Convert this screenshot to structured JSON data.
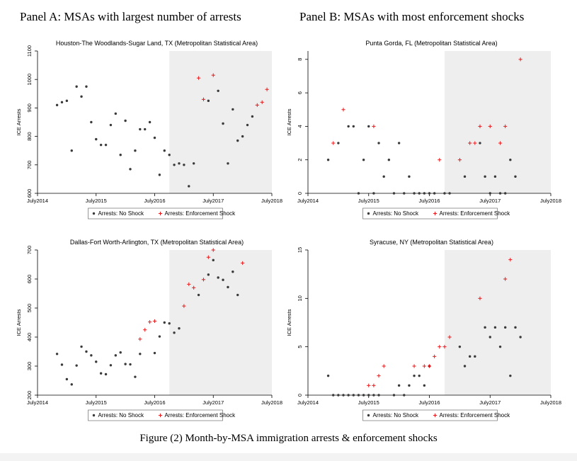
{
  "panel_a_title": "Panel A: MSAs with largest number of arrests",
  "panel_b_title": "Panel B: MSAs with most enforcement shocks",
  "figure_caption": "Figure (2)    Month-by-MSA immigration arrests & enforcement shocks",
  "colors": {
    "no_shock": "#3a3a3a",
    "shock": "#e8191b",
    "shaded": "#eeeeee",
    "axis": "#000000"
  },
  "chart_data": [
    {
      "type": "scatter",
      "title": "Houston-The Woodlands-Sugar Land, TX (Metropolitan Statistical Area)",
      "ylabel": "ICE Arrests",
      "xlabel": "",
      "x_ticks": [
        "July2014",
        "July2015",
        "July2016",
        "July2017",
        "July2018"
      ],
      "xlim": [
        "2014-07",
        "2018-07"
      ],
      "ylim": [
        600,
        1100
      ],
      "y_ticks": [
        600,
        700,
        800,
        900,
        1000,
        1100
      ],
      "shaded_from": "2016-10",
      "legend": [
        "Arrests: No Shock",
        "Arrests: Enforcement Shock"
      ],
      "series": [
        {
          "name": "Arrests: No Shock",
          "points": [
            [
              "2014-11",
              910
            ],
            [
              "2014-12",
              920
            ],
            [
              "2015-01",
              925
            ],
            [
              "2015-02",
              750
            ],
            [
              "2015-03",
              975
            ],
            [
              "2015-04",
              940
            ],
            [
              "2015-05",
              975
            ],
            [
              "2015-06",
              850
            ],
            [
              "2015-07",
              790
            ],
            [
              "2015-08",
              770
            ],
            [
              "2015-09",
              770
            ],
            [
              "2015-10",
              840
            ],
            [
              "2015-11",
              880
            ],
            [
              "2015-12",
              735
            ],
            [
              "2016-01",
              855
            ],
            [
              "2016-02",
              685
            ],
            [
              "2016-03",
              750
            ],
            [
              "2016-04",
              825
            ],
            [
              "2016-05",
              825
            ],
            [
              "2016-06",
              850
            ],
            [
              "2016-07",
              795
            ],
            [
              "2016-08",
              665
            ],
            [
              "2016-09",
              750
            ],
            [
              "2016-10",
              735
            ],
            [
              "2016-11",
              700
            ],
            [
              "2016-12",
              705
            ],
            [
              "2017-01",
              700
            ],
            [
              "2017-02",
              625
            ],
            [
              "2017-03",
              705
            ],
            [
              "2017-06",
              925
            ],
            [
              "2017-08",
              960
            ],
            [
              "2017-09",
              845
            ],
            [
              "2017-10",
              705
            ],
            [
              "2017-11",
              895
            ],
            [
              "2017-12",
              785
            ],
            [
              "2018-01",
              800
            ],
            [
              "2018-02",
              840
            ],
            [
              "2018-03",
              870
            ]
          ]
        },
        {
          "name": "Arrests: Enforcement Shock",
          "points": [
            [
              "2017-04",
              1005
            ],
            [
              "2017-05",
              930
            ],
            [
              "2017-07",
              1015
            ],
            [
              "2018-04",
              910
            ],
            [
              "2018-05",
              920
            ],
            [
              "2018-06",
              965
            ]
          ]
        }
      ]
    },
    {
      "type": "scatter",
      "title": "Punta Gorda, FL (Metropolitan Statistical Area)",
      "ylabel": "ICE Arrests",
      "xlabel": "",
      "x_ticks": [
        "July2014",
        "July2015",
        "July2016",
        "July2017",
        "July2018"
      ],
      "xlim": [
        "2014-07",
        "2018-07"
      ],
      "ylim": [
        0,
        8.5
      ],
      "y_ticks": [
        0,
        2,
        4,
        6,
        8
      ],
      "shaded_from": "2016-10",
      "legend": [
        "Arrests: No Shock",
        "Arrests: Enforcement Shock"
      ],
      "series": [
        {
          "name": "Arrests: No Shock",
          "points": [
            [
              "2014-11",
              2
            ],
            [
              "2015-01",
              3
            ],
            [
              "2015-03",
              4
            ],
            [
              "2015-04",
              4
            ],
            [
              "2015-05",
              0
            ],
            [
              "2015-06",
              2
            ],
            [
              "2015-07",
              4
            ],
            [
              "2015-08",
              0
            ],
            [
              "2015-09",
              3
            ],
            [
              "2015-10",
              1
            ],
            [
              "2015-11",
              2
            ],
            [
              "2015-12",
              0
            ],
            [
              "2016-01",
              3
            ],
            [
              "2016-02",
              0
            ],
            [
              "2016-03",
              1
            ],
            [
              "2016-04",
              0
            ],
            [
              "2016-05",
              0
            ],
            [
              "2016-06",
              0
            ],
            [
              "2016-07",
              0
            ],
            [
              "2016-08",
              0
            ],
            [
              "2016-10",
              0
            ],
            [
              "2016-11",
              0
            ],
            [
              "2017-02",
              1
            ],
            [
              "2017-05",
              3
            ],
            [
              "2017-06",
              1
            ],
            [
              "2017-07",
              0
            ],
            [
              "2017-08",
              1
            ],
            [
              "2017-09",
              0
            ],
            [
              "2017-10",
              0
            ],
            [
              "2017-11",
              2
            ],
            [
              "2017-12",
              1
            ]
          ]
        },
        {
          "name": "Arrests: Enforcement Shock",
          "points": [
            [
              "2014-12",
              3
            ],
            [
              "2015-02",
              5
            ],
            [
              "2015-08",
              4
            ],
            [
              "2016-09",
              2
            ],
            [
              "2017-01",
              2
            ],
            [
              "2017-03",
              3
            ],
            [
              "2017-04",
              3
            ],
            [
              "2017-05",
              4
            ],
            [
              "2017-07",
              4
            ],
            [
              "2017-09",
              3
            ],
            [
              "2017-10",
              4
            ],
            [
              "2018-01",
              8
            ]
          ]
        }
      ]
    },
    {
      "type": "scatter",
      "title": "Dallas-Fort Worth-Arlington, TX (Metropolitan Statistical Area)",
      "ylabel": "ICE Arrests",
      "xlabel": "",
      "x_ticks": [
        "July2014",
        "July2015",
        "July2016",
        "July2017",
        "July2018"
      ],
      "xlim": [
        "2014-07",
        "2018-07"
      ],
      "ylim": [
        200,
        700
      ],
      "y_ticks": [
        200,
        300,
        400,
        500,
        600,
        700
      ],
      "shaded_from": "2016-10",
      "legend": [
        "Arrests: No Shock",
        "Arrests: Enforcement Shock"
      ],
      "series": [
        {
          "name": "Arrests: No Shock",
          "points": [
            [
              "2014-11",
              342
            ],
            [
              "2014-12",
              305
            ],
            [
              "2015-01",
              255
            ],
            [
              "2015-02",
              237
            ],
            [
              "2015-03",
              302
            ],
            [
              "2015-04",
              367
            ],
            [
              "2015-05",
              350
            ],
            [
              "2015-06",
              337
            ],
            [
              "2015-07",
              315
            ],
            [
              "2015-08",
              275
            ],
            [
              "2015-09",
              272
            ],
            [
              "2015-10",
              303
            ],
            [
              "2015-11",
              337
            ],
            [
              "2015-12",
              347
            ],
            [
              "2016-01",
              307
            ],
            [
              "2016-02",
              306
            ],
            [
              "2016-03",
              263
            ],
            [
              "2016-04",
              342
            ],
            [
              "2016-07",
              345
            ],
            [
              "2016-08",
              402
            ],
            [
              "2016-09",
              450
            ],
            [
              "2016-10",
              447
            ],
            [
              "2016-11",
              415
            ],
            [
              "2016-12",
              430
            ],
            [
              "2017-04",
              545
            ],
            [
              "2017-06",
              615
            ],
            [
              "2017-07",
              665
            ],
            [
              "2017-08",
              605
            ],
            [
              "2017-09",
              597
            ],
            [
              "2017-10",
              572
            ],
            [
              "2017-11",
              625
            ],
            [
              "2017-12",
              545
            ]
          ]
        },
        {
          "name": "Arrests: Enforcement Shock",
          "points": [
            [
              "2016-04",
              393
            ],
            [
              "2016-05",
              425
            ],
            [
              "2016-06",
              452
            ],
            [
              "2016-07",
              455
            ],
            [
              "2017-01",
              507
            ],
            [
              "2017-02",
              582
            ],
            [
              "2017-03",
              570
            ],
            [
              "2017-05",
              598
            ],
            [
              "2017-06",
              675
            ],
            [
              "2017-07",
              700
            ],
            [
              "2018-01",
              655
            ]
          ]
        }
      ]
    },
    {
      "type": "scatter",
      "title": "Syracuse, NY (Metropolitan Statistical Area)",
      "ylabel": "ICE Arrests",
      "xlabel": "",
      "x_ticks": [
        "July2014",
        "July2015",
        "July2016",
        "July2017",
        "July2018"
      ],
      "xlim": [
        "2014-07",
        "2018-07"
      ],
      "ylim": [
        0,
        15
      ],
      "y_ticks": [
        0,
        5,
        10,
        15
      ],
      "shaded_from": "2016-10",
      "legend": [
        "Arrests: No Shock",
        "Arrests: Enforcement Shock"
      ],
      "series": [
        {
          "name": "Arrests: No Shock",
          "points": [
            [
              "2014-11",
              2
            ],
            [
              "2014-12",
              0
            ],
            [
              "2015-01",
              0
            ],
            [
              "2015-02",
              0
            ],
            [
              "2015-03",
              0
            ],
            [
              "2015-04",
              0
            ],
            [
              "2015-05",
              0
            ],
            [
              "2015-06",
              0
            ],
            [
              "2015-07",
              0
            ],
            [
              "2015-08",
              0
            ],
            [
              "2015-09",
              0
            ],
            [
              "2015-12",
              0
            ],
            [
              "2016-01",
              1
            ],
            [
              "2016-02",
              0
            ],
            [
              "2016-03",
              1
            ],
            [
              "2016-04",
              2
            ],
            [
              "2016-05",
              2
            ],
            [
              "2016-06",
              1
            ],
            [
              "2016-07",
              3
            ],
            [
              "2017-01",
              5
            ],
            [
              "2017-02",
              3
            ],
            [
              "2017-03",
              4
            ],
            [
              "2017-04",
              4
            ],
            [
              "2017-06",
              7
            ],
            [
              "2017-07",
              6
            ],
            [
              "2017-08",
              7
            ],
            [
              "2017-09",
              5
            ],
            [
              "2017-10",
              7
            ],
            [
              "2017-11",
              2
            ],
            [
              "2017-12",
              7
            ],
            [
              "2018-01",
              6
            ]
          ]
        },
        {
          "name": "Arrests: Enforcement Shock",
          "points": [
            [
              "2015-07",
              1
            ],
            [
              "2015-08",
              1
            ],
            [
              "2015-09",
              2
            ],
            [
              "2015-10",
              3
            ],
            [
              "2016-04",
              3
            ],
            [
              "2016-06",
              3
            ],
            [
              "2016-07",
              3
            ],
            [
              "2016-08",
              4
            ],
            [
              "2016-09",
              5
            ],
            [
              "2016-10",
              5
            ],
            [
              "2016-11",
              6
            ],
            [
              "2017-05",
              10
            ],
            [
              "2017-10",
              12
            ],
            [
              "2017-11",
              14
            ]
          ]
        }
      ]
    }
  ]
}
